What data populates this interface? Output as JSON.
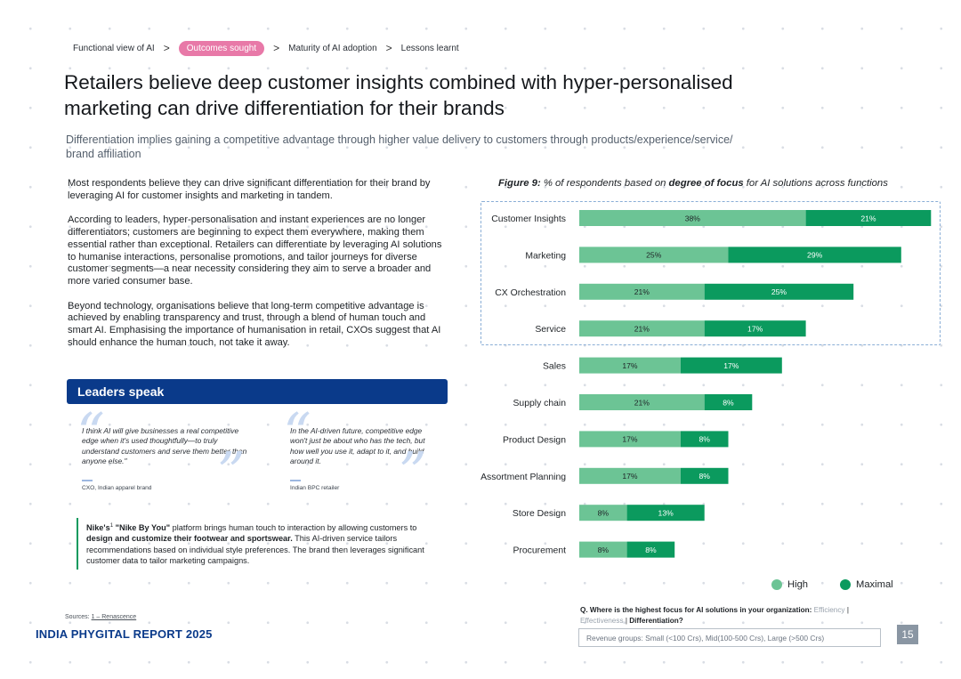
{
  "breadcrumb": {
    "items": [
      "Functional view of AI",
      "Outcomes sought",
      "Maturity of AI adoption",
      "Lessons learnt"
    ],
    "separator": ">",
    "active_index": 1
  },
  "title_line1": "Retailers believe deep customer insights combined with hyper-personalised",
  "title_line2": "marketing can drive differentiation for their brands",
  "subtitle_line1": "Differentiation implies gaining a competitive advantage through higher value delivery to customers through products/experience/service/",
  "subtitle_line2": "brand affiliation",
  "body": {
    "p1": "Most respondents believe they can drive significant differentiation for their brand by leveraging AI for customer insights and marketing in tandem.",
    "p2": "According to leaders, hyper-personalisation and instant experiences are no longer differentiators; customers are beginning to expect them everywhere, making them essential rather than exceptional. Retailers can differentiate by leveraging AI solutions to humanise interactions, personalise promotions, and tailor journeys for diverse customer segments—a near necessity considering they aim to serve a broader and more varied consumer base.",
    "p3": "Beyond technology, organisations believe that long-term competitive advantage is achieved by enabling transparency and trust, through a blend of human touch and smart AI. Emphasising the importance of humanisation in retail, CXOs suggest that AI should enhance the human touch, not take it away."
  },
  "leaders": {
    "heading": "Leaders speak",
    "quotes": [
      {
        "text": "I think AI will give businesses a real competitive edge when it's used thoughtfully—to truly understand customers and serve them better than anyone else.\"",
        "source": "CXO, Indian apparel brand"
      },
      {
        "text": "In the AI-driven future, competitive edge won't just be about who has the tech, but how well you use it, adapt to it, and build around it.",
        "source": "Indian BPC retailer"
      }
    ]
  },
  "case": {
    "prefix": "Nike's",
    "sup": "1",
    "name": " \"Nike By You\"",
    "mid": " platform brings human touch to interaction by allowing customers to ",
    "emph": "design and customize their footwear and sportswear.",
    "rest": " This AI-driven service tailors recommendations based on individual style preferences. The brand then leverages significant customer data to tailor marketing campaigns."
  },
  "sources": {
    "label": "Sources: ",
    "link": "1 – Renascence"
  },
  "footer_brand": "INDIA PHYGITAL REPORT 2025",
  "figure": {
    "label": "Figure 9:",
    "caption_a": " % of respondents based on ",
    "caption_b": "degree of focus",
    "caption_c": " for AI solutions across functions"
  },
  "chart_data": {
    "type": "bar",
    "orientation": "horizontal",
    "stacked": true,
    "categories": [
      "Customer Insights",
      "Marketing",
      "CX Orchestration",
      "Service",
      "Sales",
      "Supply chain",
      "Product Design",
      "Assortment Planning",
      "Store Design",
      "Procurement"
    ],
    "series": [
      {
        "name": "High",
        "values": [
          38,
          25,
          21,
          21,
          17,
          21,
          17,
          17,
          8,
          8
        ],
        "color": "#6cc495"
      },
      {
        "name": "Maximal",
        "values": [
          21,
          29,
          25,
          17,
          17,
          8,
          8,
          8,
          13,
          8
        ],
        "color": "#0b9a5e"
      }
    ],
    "value_suffix": "%",
    "highlighted_categories": [
      "Customer Insights",
      "Marketing",
      "CX Orchestration",
      "Service"
    ],
    "legend_position": "bottom-right",
    "grid": false
  },
  "question": {
    "q": "Q. Where is the highest focus for AI solutions in your organization:",
    "opt1": " Efficiency",
    "divider": "|",
    "opt2": "Effectiveness",
    "opt3": " Differentiation?"
  },
  "revenue_groups": "Revenue groups: Small (<100 Crs), Mid(100-500 Crs), Large (>500 Crs)",
  "page_number": "15",
  "icons": {
    "quote_open": "“",
    "quote_close": "”"
  }
}
